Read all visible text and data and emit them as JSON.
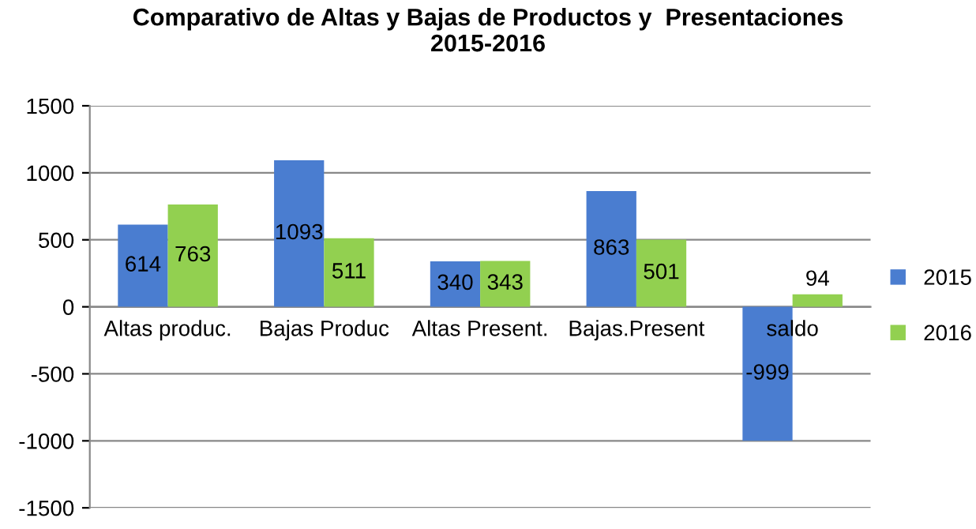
{
  "chart_data": {
    "type": "bar",
    "title": "Comparativo de Altas y Bajas de Productos y  Presentaciones\n2015-2016",
    "categories": [
      "Altas produc.",
      "Bajas Produc",
      "Altas Present.",
      "Bajas.Present",
      "saldo"
    ],
    "series": [
      {
        "name": "2015",
        "color": "#4a7dd0",
        "values": [
          614,
          1093,
          340,
          863,
          -999
        ]
      },
      {
        "name": "2016",
        "color": "#92d050",
        "values": [
          763,
          511,
          343,
          501,
          94
        ]
      }
    ],
    "ylim": [
      -1500,
      1500
    ],
    "yticks": [
      -1500,
      -1000,
      -500,
      0,
      500,
      1000,
      1500
    ],
    "grid": "y",
    "legend": "right",
    "data_labels": true
  }
}
